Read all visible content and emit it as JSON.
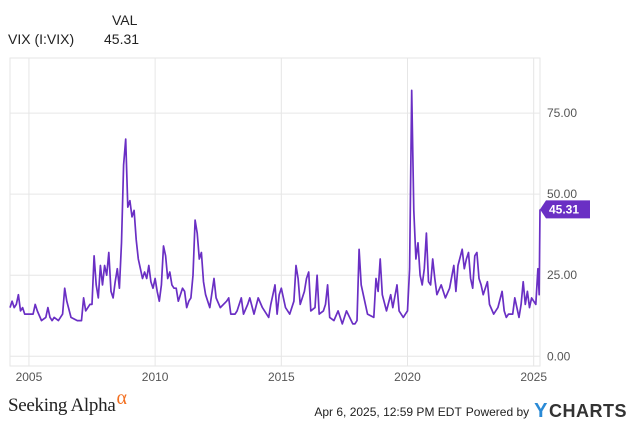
{
  "legend": {
    "header": "VAL",
    "series_name": "VIX (I:VIX)",
    "series_value": "45.31"
  },
  "footer": {
    "brand": "Seeking Alpha",
    "brand_symbol": "α",
    "timestamp": "Apr 6, 2025, 12:59 PM EDT",
    "powered": "Powered by",
    "ycharts_y": "Y",
    "ycharts_rest": "CHARTS"
  },
  "colors": {
    "series": "#6a2fc4",
    "grid": "#e6e6e6",
    "alpha": "#f37021",
    "ycharts_logo": "#2a8ad6"
  },
  "chart_data": {
    "type": "line",
    "title": "",
    "xlabel": "",
    "ylabel": "",
    "x_ticks": [
      "2005",
      "2010",
      "2015",
      "2020",
      "2025"
    ],
    "y_ticks": [
      "0.00",
      "25.00",
      "50.00",
      "75.00"
    ],
    "xlim": [
      "2004-04",
      "2025-04"
    ],
    "ylim": [
      -3,
      92
    ],
    "grid": true,
    "current_value_label": "45.31",
    "series": [
      {
        "values": [
          [
            "2004-04",
            15
          ],
          [
            "2004-05",
            17
          ],
          [
            "2004-06",
            15
          ],
          [
            "2004-07",
            16
          ],
          [
            "2004-08",
            19
          ],
          [
            "2004-09",
            14
          ],
          [
            "2004-10",
            15
          ],
          [
            "2004-11",
            13
          ],
          [
            "2004-12",
            13
          ],
          [
            "2005-01",
            13
          ],
          [
            "2005-03",
            13
          ],
          [
            "2005-04",
            16
          ],
          [
            "2005-05",
            14
          ],
          [
            "2005-07",
            11
          ],
          [
            "2005-09",
            12
          ],
          [
            "2005-10",
            15
          ],
          [
            "2005-11",
            12
          ],
          [
            "2005-12",
            11
          ],
          [
            "2006-01",
            12
          ],
          [
            "2006-03",
            11
          ],
          [
            "2006-05",
            13
          ],
          [
            "2006-06",
            21
          ],
          [
            "2006-07",
            17
          ],
          [
            "2006-09",
            12
          ],
          [
            "2006-12",
            11
          ],
          [
            "2007-01",
            11
          ],
          [
            "2007-02",
            11
          ],
          [
            "2007-03",
            18
          ],
          [
            "2007-04",
            14
          ],
          [
            "2007-06",
            16
          ],
          [
            "2007-07",
            16
          ],
          [
            "2007-08",
            31
          ],
          [
            "2007-09",
            22
          ],
          [
            "2007-10",
            18
          ],
          [
            "2007-11",
            28
          ],
          [
            "2007-12",
            22
          ],
          [
            "2008-01",
            28
          ],
          [
            "2008-02",
            25
          ],
          [
            "2008-03",
            32
          ],
          [
            "2008-04",
            20
          ],
          [
            "2008-05",
            18
          ],
          [
            "2008-06",
            23
          ],
          [
            "2008-07",
            27
          ],
          [
            "2008-08",
            21
          ],
          [
            "2008-09",
            35
          ],
          [
            "2008-10",
            59
          ],
          [
            "2008-11",
            67
          ],
          [
            "2008-12",
            46
          ],
          [
            "2009-01",
            48
          ],
          [
            "2009-02",
            43
          ],
          [
            "2009-03",
            45
          ],
          [
            "2009-04",
            36
          ],
          [
            "2009-05",
            30
          ],
          [
            "2009-06",
            27
          ],
          [
            "2009-07",
            24
          ],
          [
            "2009-08",
            26
          ],
          [
            "2009-09",
            24
          ],
          [
            "2009-10",
            28
          ],
          [
            "2009-11",
            23
          ],
          [
            "2009-12",
            21
          ],
          [
            "2010-01",
            24
          ],
          [
            "2010-02",
            20
          ],
          [
            "2010-03",
            17
          ],
          [
            "2010-04",
            22
          ],
          [
            "2010-05",
            34
          ],
          [
            "2010-06",
            31
          ],
          [
            "2010-07",
            24
          ],
          [
            "2010-08",
            26
          ],
          [
            "2010-09",
            22
          ],
          [
            "2010-10",
            21
          ],
          [
            "2010-11",
            21
          ],
          [
            "2010-12",
            17
          ],
          [
            "2011-01",
            19
          ],
          [
            "2011-02",
            21
          ],
          [
            "2011-03",
            20
          ],
          [
            "2011-04",
            15
          ],
          [
            "2011-05",
            17
          ],
          [
            "2011-06",
            18
          ],
          [
            "2011-07",
            25
          ],
          [
            "2011-08",
            42
          ],
          [
            "2011-09",
            38
          ],
          [
            "2011-10",
            30
          ],
          [
            "2011-11",
            32
          ],
          [
            "2011-12",
            23
          ],
          [
            "2012-01",
            19
          ],
          [
            "2012-03",
            15
          ],
          [
            "2012-05",
            24
          ],
          [
            "2012-06",
            18
          ],
          [
            "2012-08",
            15
          ],
          [
            "2012-11",
            17
          ],
          [
            "2012-12",
            18
          ],
          [
            "2013-01",
            13
          ],
          [
            "2013-03",
            13
          ],
          [
            "2013-04",
            14
          ],
          [
            "2013-06",
            18
          ],
          [
            "2013-07",
            13
          ],
          [
            "2013-09",
            16
          ],
          [
            "2013-10",
            18
          ],
          [
            "2013-12",
            13
          ],
          [
            "2014-02",
            18
          ],
          [
            "2014-04",
            15
          ],
          [
            "2014-07",
            12
          ],
          [
            "2014-08",
            16
          ],
          [
            "2014-10",
            22
          ],
          [
            "2014-11",
            13
          ],
          [
            "2014-12",
            19
          ],
          [
            "2015-01",
            21
          ],
          [
            "2015-03",
            15
          ],
          [
            "2015-05",
            13
          ],
          [
            "2015-07",
            17
          ],
          [
            "2015-08",
            28
          ],
          [
            "2015-09",
            24
          ],
          [
            "2015-10",
            16
          ],
          [
            "2015-12",
            20
          ],
          [
            "2016-01",
            24
          ],
          [
            "2016-02",
            26
          ],
          [
            "2016-03",
            14
          ],
          [
            "2016-05",
            15
          ],
          [
            "2016-06",
            25
          ],
          [
            "2016-07",
            13
          ],
          [
            "2016-09",
            14
          ],
          [
            "2016-10",
            16
          ],
          [
            "2016-11",
            22
          ],
          [
            "2016-12",
            12
          ],
          [
            "2017-02",
            11
          ],
          [
            "2017-04",
            14
          ],
          [
            "2017-06",
            10
          ],
          [
            "2017-08",
            14
          ],
          [
            "2017-11",
            10
          ],
          [
            "2017-12",
            10
          ],
          [
            "2018-01",
            11
          ],
          [
            "2018-02",
            33
          ],
          [
            "2018-03",
            22
          ],
          [
            "2018-04",
            19
          ],
          [
            "2018-06",
            13
          ],
          [
            "2018-09",
            12
          ],
          [
            "2018-10",
            24
          ],
          [
            "2018-11",
            20
          ],
          [
            "2018-12",
            30
          ],
          [
            "2019-01",
            19
          ],
          [
            "2019-03",
            14
          ],
          [
            "2019-05",
            19
          ],
          [
            "2019-06",
            15
          ],
          [
            "2019-08",
            22
          ],
          [
            "2019-09",
            14
          ],
          [
            "2019-11",
            12
          ],
          [
            "2019-12",
            13
          ],
          [
            "2020-01",
            14
          ],
          [
            "2020-02",
            27
          ],
          [
            "2020-03",
            82
          ],
          [
            "2020-04",
            45
          ],
          [
            "2020-05",
            30
          ],
          [
            "2020-06",
            35
          ],
          [
            "2020-07",
            25
          ],
          [
            "2020-08",
            22
          ],
          [
            "2020-09",
            27
          ],
          [
            "2020-10",
            38
          ],
          [
            "2020-11",
            23
          ],
          [
            "2020-12",
            22
          ],
          [
            "2021-01",
            30
          ],
          [
            "2021-02",
            24
          ],
          [
            "2021-03",
            19
          ],
          [
            "2021-05",
            22
          ],
          [
            "2021-07",
            18
          ],
          [
            "2021-09",
            21
          ],
          [
            "2021-11",
            28
          ],
          [
            "2021-12",
            20
          ],
          [
            "2022-01",
            28
          ],
          [
            "2022-03",
            33
          ],
          [
            "2022-04",
            27
          ],
          [
            "2022-05",
            30
          ],
          [
            "2022-06",
            32
          ],
          [
            "2022-07",
            24
          ],
          [
            "2022-08",
            21
          ],
          [
            "2022-09",
            31
          ],
          [
            "2022-10",
            32
          ],
          [
            "2022-11",
            24
          ],
          [
            "2022-12",
            22
          ],
          [
            "2023-01",
            19
          ],
          [
            "2023-03",
            23
          ],
          [
            "2023-04",
            16
          ],
          [
            "2023-06",
            13
          ],
          [
            "2023-08",
            15
          ],
          [
            "2023-10",
            20
          ],
          [
            "2023-11",
            14
          ],
          [
            "2023-12",
            12
          ],
          [
            "2024-01",
            13
          ],
          [
            "2024-03",
            13
          ],
          [
            "2024-04",
            18
          ],
          [
            "2024-06",
            12
          ],
          [
            "2024-07",
            16
          ],
          [
            "2024-08",
            23
          ],
          [
            "2024-09",
            16
          ],
          [
            "2024-10",
            20
          ],
          [
            "2024-11",
            15
          ],
          [
            "2024-12",
            18
          ],
          [
            "2025-01",
            17
          ],
          [
            "2025-02",
            16
          ],
          [
            "2025-03",
            27
          ],
          [
            "2025-03-20",
            19
          ],
          [
            "2025-04",
            45.31
          ]
        ]
      }
    ]
  }
}
